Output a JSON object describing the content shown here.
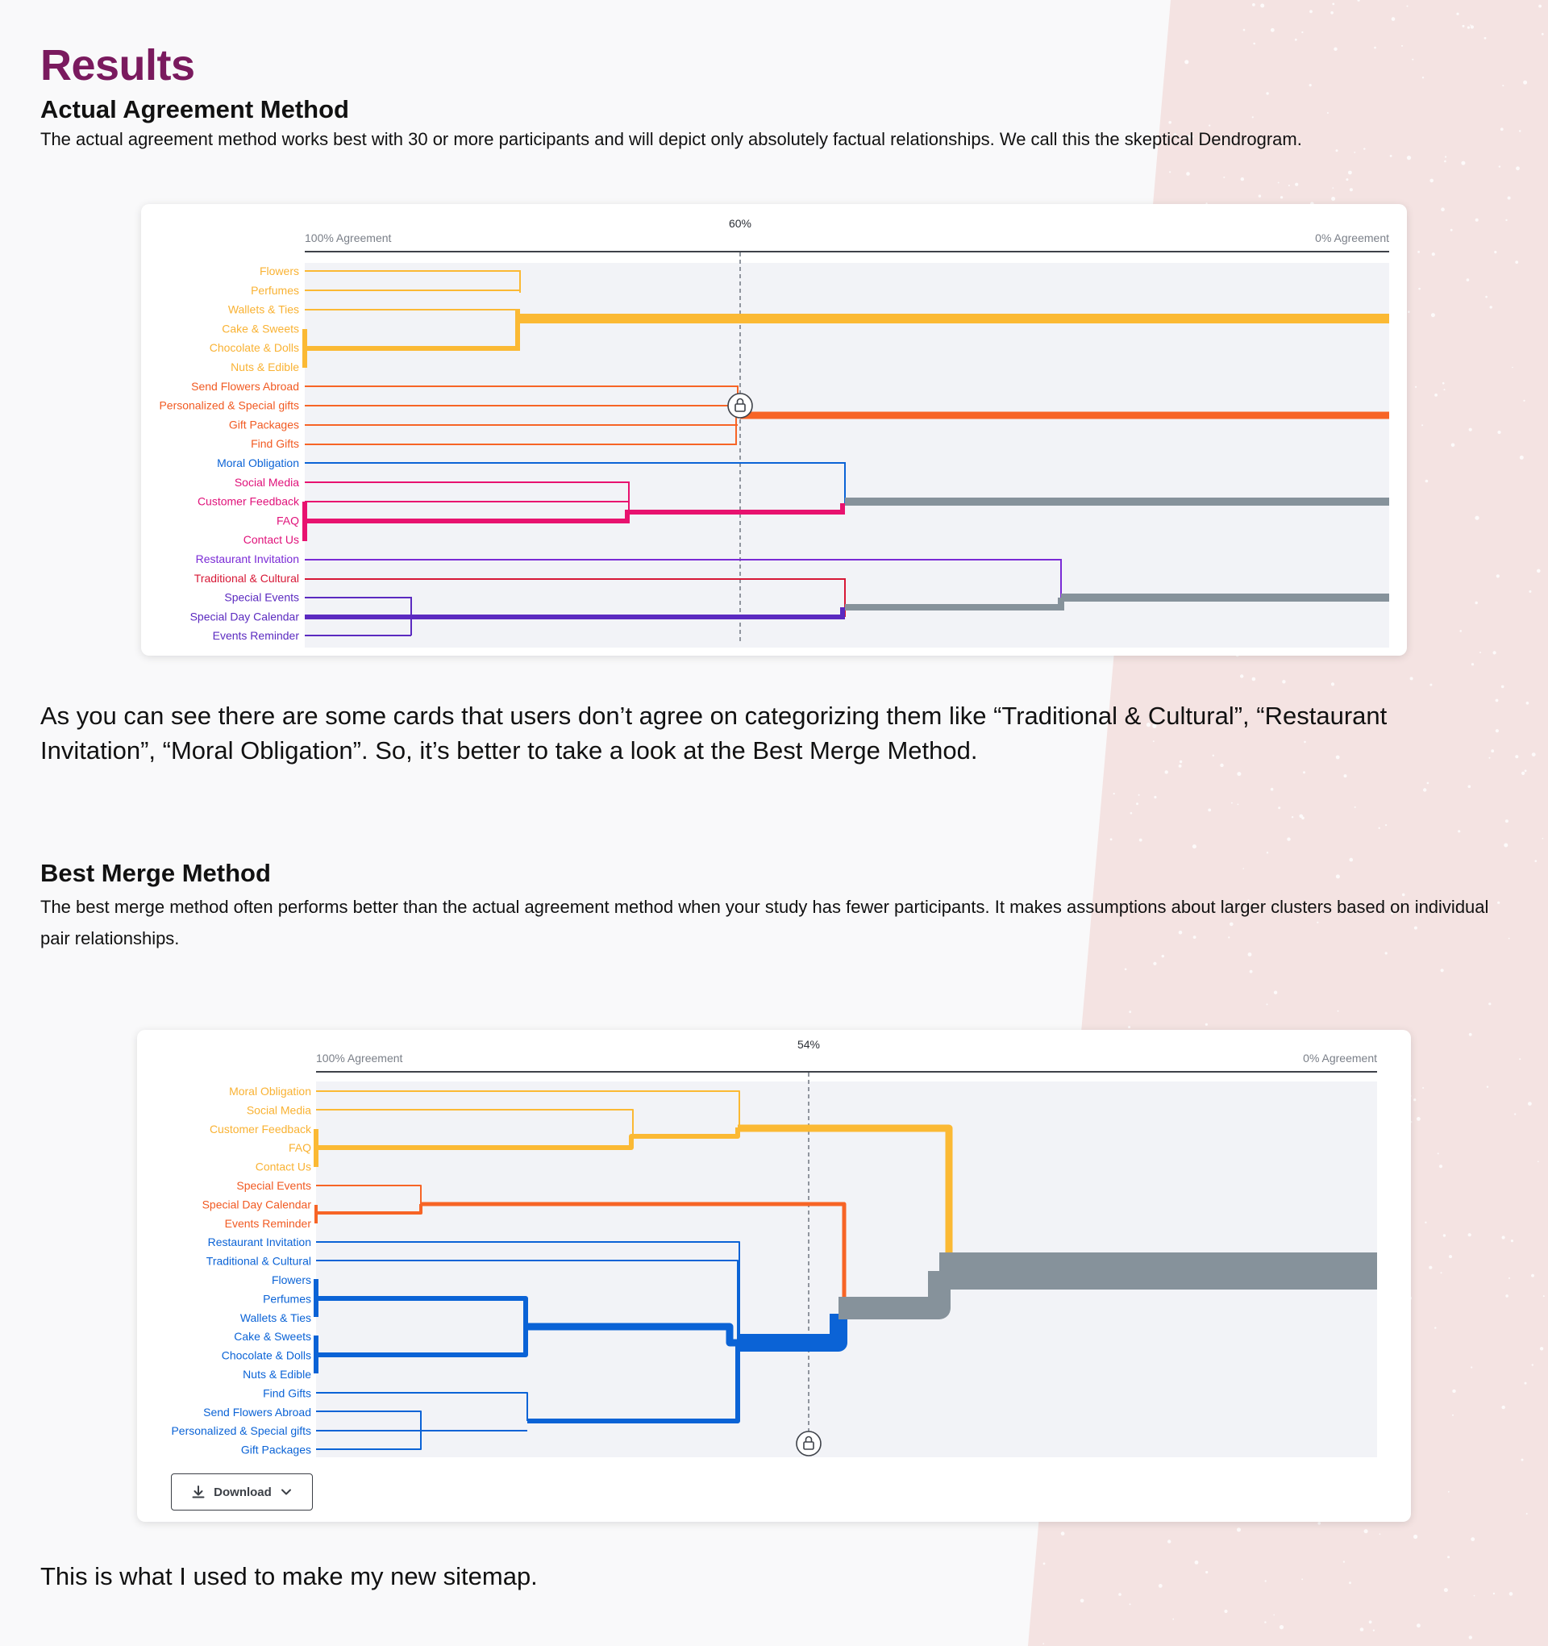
{
  "page": {
    "title": "Results",
    "section1": {
      "heading": "Actual Agreement Method",
      "description": "The actual agreement method works best with 30 or more participants and will depict only absolutely factual relationships. We call this the skeptical Dendrogram."
    },
    "paragraph_after_chart1": "As you can see there are some cards that users don’t agree on categorizing them like “Traditional & Cultural”, “Restaurant Invitation”, “Moral Obligation”. So, it’s better to take a look at the Best Merge Method.",
    "section2": {
      "heading": "Best Merge Method",
      "description": "The best merge method often performs better than the actual agreement method when your study has fewer participants. It makes assumptions about larger clusters based on individual pair relationships."
    },
    "download_label": "Download",
    "closing": "This is what I used to make my new sitemap.",
    "colors": {
      "title": "#7a1a5e",
      "yellow": "#fbb934",
      "orange": "#f76426",
      "blue": "#0b63d6",
      "pink": "#e8126f",
      "purple": "#7a2ad6",
      "red": "#d71836",
      "indigo": "#5b2ac0",
      "gray": "#86929b",
      "background_pink": "#f3e2e1"
    },
    "icons": [
      "lock-icon",
      "download-icon",
      "chevron-down-icon"
    ]
  },
  "chart_data": [
    {
      "type": "dendrogram",
      "method": "Actual Agreement",
      "x_axis": {
        "left_label": "100% Agreement",
        "right_label": "0% Agreement",
        "range_percent": [
          100,
          0
        ]
      },
      "threshold": {
        "label": "60%",
        "value": 60
      },
      "leaves": [
        {
          "label": "Flowers",
          "color": "#f9b233"
        },
        {
          "label": "Perfumes",
          "color": "#f9b233"
        },
        {
          "label": "Wallets & Ties",
          "color": "#f9b233"
        },
        {
          "label": "Cake & Sweets",
          "color": "#f9b233"
        },
        {
          "label": "Chocolate & Dolls",
          "color": "#f9b233"
        },
        {
          "label": "Nuts & Edible",
          "color": "#f9b233"
        },
        {
          "label": "Send Flowers Abroad",
          "color": "#f15a22"
        },
        {
          "label": "Personalized & Special gifts",
          "color": "#f15a22"
        },
        {
          "label": "Gift Packages",
          "color": "#f15a22"
        },
        {
          "label": "Find Gifts",
          "color": "#f15a22"
        },
        {
          "label": "Moral Obligation",
          "color": "#0b63d6"
        },
        {
          "label": "Social Media",
          "color": "#e0127a"
        },
        {
          "label": "Customer Feedback",
          "color": "#e0127a"
        },
        {
          "label": "FAQ",
          "color": "#e0127a"
        },
        {
          "label": "Contact Us",
          "color": "#e0127a"
        },
        {
          "label": "Restaurant Invitation",
          "color": "#7a2ad6"
        },
        {
          "label": "Traditional & Cultural",
          "color": "#d71836"
        },
        {
          "label": "Special Events",
          "color": "#5b2ac0"
        },
        {
          "label": "Special Day Calendar",
          "color": "#5b2ac0"
        },
        {
          "label": "Events Reminder",
          "color": "#5b2ac0"
        }
      ],
      "merges": [
        {
          "members": [
            "Cake & Sweets",
            "Chocolate & Dolls",
            "Nuts & Edible"
          ],
          "agreement": 100
        },
        {
          "members": [
            "Flowers",
            "Perfumes",
            "Wallets & Ties",
            "Cake & Sweets",
            "Chocolate & Dolls",
            "Nuts & Edible"
          ],
          "agreement": 80
        },
        {
          "members": [
            "Send Flowers Abroad",
            "Personalized & Special gifts",
            "Gift Packages",
            "Find Gifts"
          ],
          "agreement": 60
        },
        {
          "members": [
            "FAQ",
            "Contact Us"
          ],
          "agreement": 100
        },
        {
          "members": [
            "Social Media",
            "Customer Feedback",
            "FAQ",
            "Contact Us"
          ],
          "agreement": 70
        },
        {
          "members": [
            "Moral Obligation",
            "Social Media",
            "Customer Feedback",
            "FAQ",
            "Contact Us"
          ],
          "agreement": 50
        },
        {
          "members": [
            "Special Events",
            "Special Day Calendar",
            "Events Reminder"
          ],
          "agreement": 90
        },
        {
          "members": [
            "Traditional & Cultural",
            "Special Events",
            "Special Day Calendar",
            "Events Reminder"
          ],
          "agreement": 50
        },
        {
          "members": [
            "Restaurant Invitation",
            "Traditional & Cultural",
            "Special Events",
            "Special Day Calendar",
            "Events Reminder"
          ],
          "agreement": 30
        }
      ]
    },
    {
      "type": "dendrogram",
      "method": "Best Merge",
      "x_axis": {
        "left_label": "100% Agreement",
        "right_label": "0% Agreement",
        "range_percent": [
          100,
          0
        ]
      },
      "threshold": {
        "label": "54%",
        "value": 54
      },
      "leaves": [
        {
          "label": "Moral Obligation",
          "color": "#f9b233"
        },
        {
          "label": "Social Media",
          "color": "#f9b233"
        },
        {
          "label": "Customer Feedback",
          "color": "#f9b233"
        },
        {
          "label": "FAQ",
          "color": "#f9b233"
        },
        {
          "label": "Contact Us",
          "color": "#f9b233"
        },
        {
          "label": "Special Events",
          "color": "#f15a22"
        },
        {
          "label": "Special Day Calendar",
          "color": "#f15a22"
        },
        {
          "label": "Events Reminder",
          "color": "#f15a22"
        },
        {
          "label": "Restaurant Invitation",
          "color": "#0b63d6"
        },
        {
          "label": "Traditional & Cultural",
          "color": "#0b63d6"
        },
        {
          "label": "Flowers",
          "color": "#0b63d6"
        },
        {
          "label": "Perfumes",
          "color": "#0b63d6"
        },
        {
          "label": "Wallets & Ties",
          "color": "#0b63d6"
        },
        {
          "label": "Cake & Sweets",
          "color": "#0b63d6"
        },
        {
          "label": "Chocolate & Dolls",
          "color": "#0b63d6"
        },
        {
          "label": "Nuts & Edible",
          "color": "#0b63d6"
        },
        {
          "label": "Find Gifts",
          "color": "#0b63d6"
        },
        {
          "label": "Send Flowers Abroad",
          "color": "#0b63d6"
        },
        {
          "label": "Personalized & Special gifts",
          "color": "#0b63d6"
        },
        {
          "label": "Gift Packages",
          "color": "#0b63d6"
        }
      ],
      "merges": [
        {
          "members": [
            "Customer Feedback",
            "FAQ",
            "Contact Us"
          ],
          "agreement": 100
        },
        {
          "members": [
            "Social Media",
            "Customer Feedback",
            "FAQ",
            "Contact Us"
          ],
          "agreement": 70
        },
        {
          "members": [
            "Moral Obligation",
            "Social Media",
            "Customer Feedback",
            "FAQ",
            "Contact Us"
          ],
          "agreement": 60
        },
        {
          "members": [
            "Special Day Calendar",
            "Events Reminder"
          ],
          "agreement": 100
        },
        {
          "members": [
            "Special Events",
            "Special Day Calendar",
            "Events Reminder"
          ],
          "agreement": 90
        },
        {
          "members": [
            "Flowers",
            "Perfumes",
            "Wallets & Ties"
          ],
          "agreement": 100
        },
        {
          "members": [
            "Cake & Sweets",
            "Chocolate & Dolls",
            "Nuts & Edible"
          ],
          "agreement": 100
        },
        {
          "members": [
            "Flowers",
            "Perfumes",
            "Wallets & Ties",
            "Cake & Sweets",
            "Chocolate & Dolls",
            "Nuts & Edible"
          ],
          "agreement": 80
        },
        {
          "members": [
            "Personalized & Special gifts",
            "Gift Packages"
          ],
          "agreement": 90
        },
        {
          "members": [
            "Send Flowers Abroad",
            "Personalized & Special gifts",
            "Gift Packages"
          ],
          "agreement": 90
        },
        {
          "members": [
            "Find Gifts",
            "Send Flowers Abroad",
            "Personalized & Special gifts",
            "Gift Packages"
          ],
          "agreement": 80
        },
        {
          "members": [
            "gifts group",
            "Restaurant Invitation",
            "Traditional & Cultural"
          ],
          "agreement": 60
        },
        {
          "members": [
            "blue group",
            "orange group"
          ],
          "agreement": 50
        },
        {
          "members": [
            "all cards"
          ],
          "agreement": 40
        }
      ]
    }
  ]
}
